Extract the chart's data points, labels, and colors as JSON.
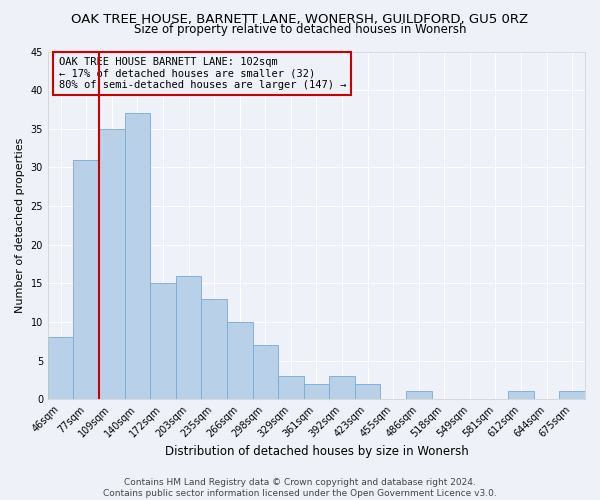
{
  "title": "OAK TREE HOUSE, BARNETT LANE, WONERSH, GUILDFORD, GU5 0RZ",
  "subtitle": "Size of property relative to detached houses in Wonersh",
  "xlabel": "Distribution of detached houses by size in Wonersh",
  "ylabel": "Number of detached properties",
  "bar_labels": [
    "46sqm",
    "77sqm",
    "109sqm",
    "140sqm",
    "172sqm",
    "203sqm",
    "235sqm",
    "266sqm",
    "298sqm",
    "329sqm",
    "361sqm",
    "392sqm",
    "423sqm",
    "455sqm",
    "486sqm",
    "518sqm",
    "549sqm",
    "581sqm",
    "612sqm",
    "644sqm",
    "675sqm"
  ],
  "bar_values": [
    8,
    31,
    35,
    37,
    15,
    16,
    13,
    10,
    7,
    3,
    2,
    3,
    2,
    0,
    1,
    0,
    0,
    0,
    1,
    0,
    1
  ],
  "bar_color": "#b8d0e8",
  "bar_edge_color": "#7aaad0",
  "vline_x": 1.5,
  "vline_color": "#cc0000",
  "annotation_lines": [
    "OAK TREE HOUSE BARNETT LANE: 102sqm",
    "← 17% of detached houses are smaller (32)",
    "80% of semi-detached houses are larger (147) →"
  ],
  "annotation_box_color": "#cc0000",
  "ylim": [
    0,
    45
  ],
  "yticks": [
    0,
    5,
    10,
    15,
    20,
    25,
    30,
    35,
    40,
    45
  ],
  "footer_line1": "Contains HM Land Registry data © Crown copyright and database right 2024.",
  "footer_line2": "Contains public sector information licensed under the Open Government Licence v3.0.",
  "bg_color": "#eef2f8",
  "grid_color": "#ffffff",
  "title_fontsize": 9.5,
  "subtitle_fontsize": 8.5,
  "xlabel_fontsize": 8.5,
  "ylabel_fontsize": 8,
  "tick_fontsize": 7,
  "annotation_fontsize": 7.5,
  "footer_fontsize": 6.5
}
